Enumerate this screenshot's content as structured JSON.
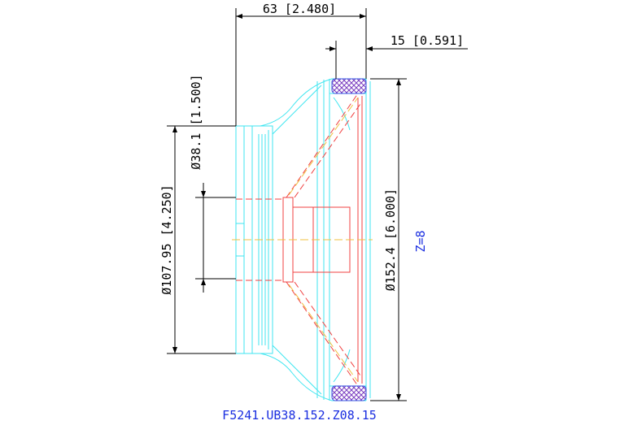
{
  "dimensions": {
    "overall_depth": "63 [2.480]",
    "rim_width": "15 [0.591]",
    "bore_diameter": "Ø38.1 [1.500]",
    "hub_diameter": "Ø107.95 [4.250]",
    "outer_diameter": "Ø152.4 [6.000]"
  },
  "note": "Z=8",
  "part_number": "F5241.UB38.152.Z08.15"
}
